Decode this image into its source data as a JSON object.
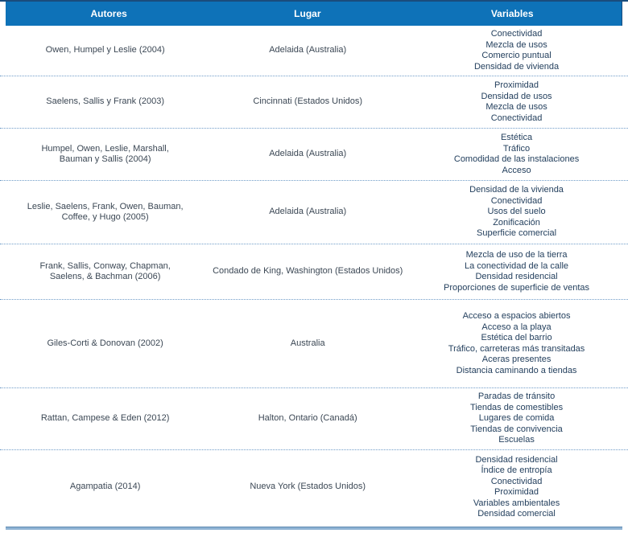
{
  "colors": {
    "header_bg": "#0e72b8",
    "header_text": "#ffffff",
    "rule_dark": "#1a4c7c",
    "body_text": "#3b4754",
    "variables_text": "#24405e",
    "dot_line": "#6f9cc8",
    "bottom_line": "#8fb3d4",
    "bottom_line_dark": "#5c88b0"
  },
  "table": {
    "headers": [
      "Autores",
      "Lugar",
      "Variables"
    ],
    "rows": [
      {
        "autores": "Owen, Humpel y Leslie (2004)",
        "lugar": "Adelaida (Australia)",
        "variables": [
          "Conectividad",
          "Mezcla de usos",
          "Comercio puntual",
          "Densidad de vivienda"
        ]
      },
      {
        "autores": "Saelens, Sallis y Frank (2003)",
        "lugar": "Cincinnati (Estados Unidos)",
        "variables": [
          "Proximidad",
          "Densidad de usos",
          "Mezcla de usos",
          "Conectividad"
        ]
      },
      {
        "autores": "Humpel, Owen, Leslie, Marshall, Bauman y Sallis (2004)",
        "lugar": "Adelaida (Australia)",
        "variables": [
          "Estética",
          "Tráfico",
          "Comodidad de las instalaciones",
          "Acceso"
        ]
      },
      {
        "autores": "Leslie, Saelens, Frank, Owen, Bauman, Coffee, y Hugo (2005)",
        "lugar": "Adelaida (Australia)",
        "variables": [
          "Densidad de la vivienda",
          "Conectividad",
          "Usos del suelo",
          "Zonificación",
          "Superficie comercial"
        ]
      },
      {
        "autores": "Frank, Sallis, Conway, Chapman, Saelens, & Bachman (2006)",
        "lugar": "Condado de King, Washington (Estados Unidos)",
        "variables": [
          "Mezcla de uso de la tierra",
          "La conectividad de la calle",
          "Densidad residencial",
          "Proporciones de superficie de ventas"
        ]
      },
      {
        "autores": "Giles-Corti & Donovan (2002)",
        "lugar": "Australia",
        "variables": [
          "Acceso a espacios abiertos",
          "Acceso a la playa",
          "Estética del barrio",
          "Tráfico, carreteras más transitadas",
          "Aceras presentes",
          "Distancia caminando a tiendas"
        ]
      },
      {
        "autores": "Rattan, Campese & Eden (2012)",
        "lugar": "Halton, Ontario (Canadá)",
        "variables": [
          "Paradas de tránsito",
          "Tiendas de comestibles",
          "Lugares de comida",
          "Tiendas de convivencia",
          "Escuelas"
        ]
      },
      {
        "autores": "Agampatia (2014)",
        "lugar": "Nueva York (Estados Unidos)",
        "variables": [
          "Densidad residencial",
          "Índice de entropía",
          "Conectividad",
          "Proximidad",
          "Variables ambientales",
          "Densidad comercial"
        ]
      }
    ]
  }
}
